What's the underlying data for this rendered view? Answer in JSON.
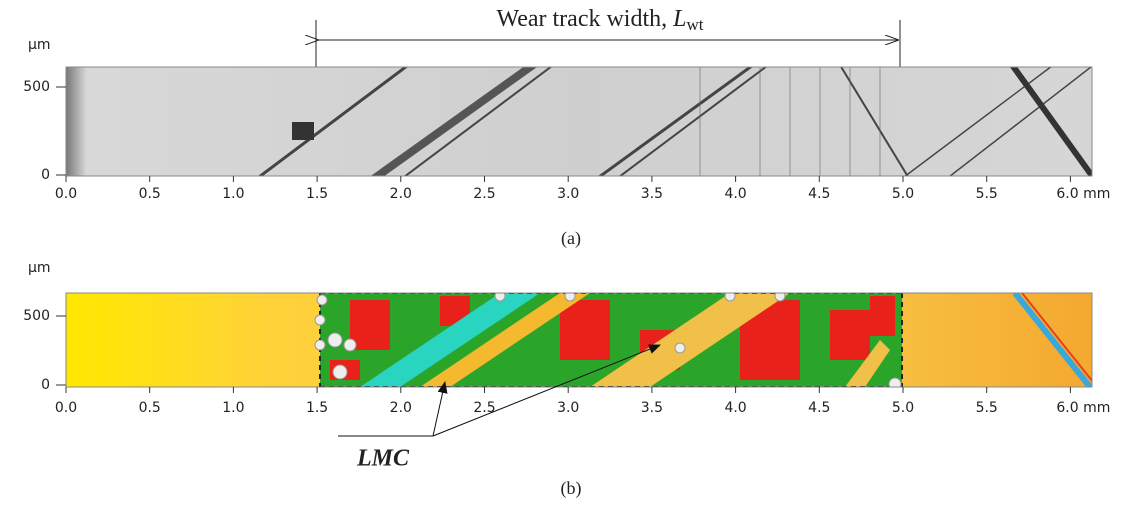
{
  "figure": {
    "title": {
      "text": "Wear track width,",
      "symbol": "L",
      "subscript": "wt"
    },
    "panels": [
      {
        "caption": "(a)",
        "y_unit": "µm",
        "yticks": [
          "500",
          "0"
        ],
        "xticks": [
          "0.0",
          "0.5",
          "1.0",
          "1.5",
          "2.0",
          "2.5",
          "3.0",
          "3.5",
          "4.0",
          "4.5",
          "5.0",
          "5.5",
          "6.0 mm"
        ]
      },
      {
        "caption": "(b)",
        "y_unit": "µm",
        "yticks": [
          "500",
          "0"
        ],
        "xticks": [
          "0.0",
          "0.5",
          "1.0",
          "1.5",
          "2.0",
          "2.5",
          "3.0",
          "3.5",
          "4.0",
          "4.5",
          "5.0",
          "5.5",
          "6.0 mm"
        ]
      }
    ],
    "annotation": "LMC"
  }
}
